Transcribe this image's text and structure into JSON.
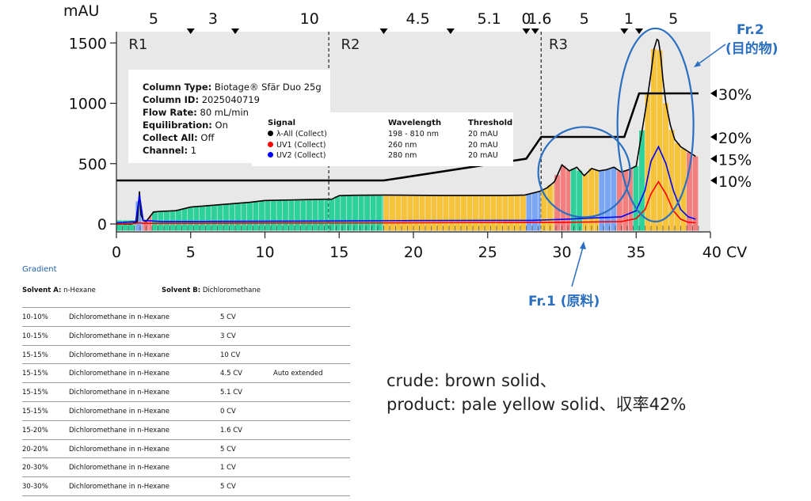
{
  "chart_data": {
    "type": "area",
    "ylabel": "mAU",
    "xlabel": "CV",
    "x_ticks": [
      0,
      5,
      10,
      15,
      20,
      25,
      30,
      35,
      40
    ],
    "y_ticks": [
      0,
      500,
      1000,
      1500
    ],
    "x_unit_label": "40 CV",
    "xlim": [
      0,
      40
    ],
    "ylim": [
      -70,
      1590
    ],
    "grid": false,
    "segment_labels": [
      {
        "label": "5",
        "x": 2.5
      },
      {
        "label": "3",
        "x": 6.5
      },
      {
        "label": "10",
        "x": 13
      },
      {
        "label": "4.5",
        "x": 20.3
      },
      {
        "label": "5.1",
        "x": 25.1
      },
      {
        "label": "0",
        "x": 27.6
      },
      {
        "label": "1.6",
        "x": 28.5
      },
      {
        "label": "5",
        "x": 31.5
      },
      {
        "label": "1",
        "x": 34.5
      },
      {
        "label": "5",
        "x": 37.5
      }
    ],
    "segment_markers": [
      5,
      8,
      18,
      22.5,
      27.6,
      28.2,
      34.2,
      35.2
    ],
    "regions": [
      {
        "label": "R1",
        "x": 0.5
      },
      {
        "label": "R2",
        "x": 14.8
      },
      {
        "label": "R3",
        "x": 28.8
      }
    ],
    "region_boundaries": [
      14.3,
      28.6
    ],
    "series": [
      {
        "name": "λ-All (Collect)",
        "color": "#000000",
        "x": [
          0,
          0.3,
          1,
          1.4,
          1.55,
          1.65,
          1.8,
          2,
          2.5,
          3,
          4,
          5,
          7,
          9,
          10,
          12,
          14,
          14.5,
          15,
          16,
          18,
          20,
          22,
          24,
          26,
          27,
          27.5,
          28,
          28.5,
          29,
          29.5,
          30,
          30.5,
          31,
          31.5,
          32,
          32.5,
          33,
          33.5,
          34,
          34.5,
          35,
          35.3,
          35.7,
          36,
          36.2,
          36.4,
          36.5,
          36.65,
          36.8,
          37,
          37.3,
          37.6,
          38,
          38.5,
          39
        ],
        "values": [
          0,
          0,
          0,
          20,
          270,
          80,
          30,
          20,
          100,
          105,
          110,
          140,
          160,
          180,
          195,
          200,
          205,
          205,
          235,
          238,
          240,
          238,
          237,
          237,
          237,
          238,
          240,
          255,
          270,
          300,
          350,
          490,
          440,
          470,
          400,
          460,
          440,
          450,
          470,
          430,
          450,
          480,
          700,
          1000,
          1250,
          1450,
          1530,
          1520,
          1400,
          1200,
          1000,
          820,
          700,
          640,
          600,
          560
        ]
      },
      {
        "name": "UV1 (Collect)",
        "color": "#ff0000",
        "x": [
          0,
          1.3,
          1.55,
          1.8,
          3,
          10,
          20,
          30,
          34,
          35,
          35.6,
          36,
          36.5,
          37,
          37.5,
          38,
          38.5,
          39
        ],
        "values": [
          0,
          5,
          10,
          5,
          5,
          8,
          10,
          14,
          20,
          45,
          120,
          250,
          350,
          250,
          110,
          40,
          15,
          10
        ]
      },
      {
        "name": "UV2 (Collect)",
        "color": "#0000ff",
        "x": [
          0,
          1.3,
          1.55,
          1.8,
          3,
          10,
          20,
          28,
          30,
          34,
          35,
          35.6,
          36,
          36.5,
          37,
          37.5,
          38,
          38.5,
          39
        ],
        "values": [
          10,
          20,
          240,
          30,
          20,
          22,
          28,
          30,
          38,
          60,
          110,
          280,
          520,
          640,
          500,
          280,
          120,
          60,
          40
        ]
      }
    ],
    "gradient_percent": {
      "x": [
        0,
        18,
        27.6,
        28.6,
        34.2,
        35.2,
        39.2
      ],
      "percent": [
        10,
        10,
        15,
        20,
        20,
        30,
        30
      ],
      "labels": [
        "30%",
        "20%",
        "15%",
        "10%"
      ]
    },
    "fractions": {
      "colors": [
        "#2fd19a",
        "#f6c33a",
        "#f47f7f",
        "#7aa6f3"
      ],
      "bands": [
        {
          "from": 0,
          "to": 1.3,
          "color": "#2fd19a"
        },
        {
          "from": 1.3,
          "to": 1.8,
          "color": "#7aa6f3"
        },
        {
          "from": 1.8,
          "to": 2.4,
          "color": "#f47f7f"
        },
        {
          "from": 2.4,
          "to": 14.3,
          "color": "#2fd19a"
        },
        {
          "from": 14.3,
          "to": 18,
          "color": "#2fd19a"
        },
        {
          "from": 18,
          "to": 27.6,
          "color": "#f6c33a"
        },
        {
          "from": 27.6,
          "to": 28.6,
          "color": "#7aa6f3"
        },
        {
          "from": 28.6,
          "to": 29.5,
          "color": "#f6c33a"
        },
        {
          "from": 29.5,
          "to": 30.6,
          "color": "#f47f7f"
        },
        {
          "from": 30.6,
          "to": 31.4,
          "color": "#2fd19a"
        },
        {
          "from": 31.4,
          "to": 32.5,
          "color": "#f6c33a"
        },
        {
          "from": 32.5,
          "to": 33.7,
          "color": "#7aa6f3"
        },
        {
          "from": 33.7,
          "to": 34.8,
          "color": "#f47f7f"
        },
        {
          "from": 34.8,
          "to": 35.6,
          "color": "#2fd19a"
        },
        {
          "from": 35.6,
          "to": 38.4,
          "color": "#f6c33a"
        },
        {
          "from": 38.4,
          "to": 39.2,
          "color": "#f47f7f"
        }
      ]
    }
  },
  "info_box": [
    {
      "key": "Column Type:",
      "value": "Biotage® Sfär Duo 25g"
    },
    {
      "key": "Column ID:",
      "value": "2025040719"
    },
    {
      "key": "Flow Rate:",
      "value": "80 mL/min"
    },
    {
      "key": "Equilibration:",
      "value": "On"
    },
    {
      "key": "Collect All:",
      "value": "Off"
    },
    {
      "key": "Channel:",
      "value": "1"
    }
  ],
  "signal_table": {
    "headers": {
      "signal": "Signal",
      "wavelength": "Wavelength",
      "threshold": "Threshold"
    },
    "rows": [
      {
        "name": "λ-All (Collect)",
        "color": "#000000",
        "wavelength": "198 - 810 nm",
        "threshold": "20 mAU"
      },
      {
        "name": "UV1 (Collect)",
        "color": "#ff0000",
        "wavelength": "260 nm",
        "threshold": "20 mAU"
      },
      {
        "name": "UV2 (Collect)",
        "color": "#0000ff",
        "wavelength": "280 nm",
        "threshold": "20 mAU"
      }
    ]
  },
  "gradient": {
    "title": "Gradient",
    "solvent_a_label": "Solvent A:",
    "solvent_a": "n-Hexane",
    "solvent_b_label": "Solvent B:",
    "solvent_b": "Dichloromethane",
    "rows": [
      {
        "range": "10-10%",
        "desc": "Dichloromethane in n-Hexane",
        "length": "5 CV",
        "note": ""
      },
      {
        "range": "10-15%",
        "desc": "Dichloromethane in n-Hexane",
        "length": "3 CV",
        "note": ""
      },
      {
        "range": "15-15%",
        "desc": "Dichloromethane in n-Hexane",
        "length": "10 CV",
        "note": ""
      },
      {
        "range": "15-15%",
        "desc": "Dichloromethane in n-Hexane",
        "length": "4.5 CV",
        "note": "Auto extended"
      },
      {
        "range": "15-15%",
        "desc": "Dichloromethane in n-Hexane",
        "length": "5.1 CV",
        "note": ""
      },
      {
        "range": "15-15%",
        "desc": "Dichloromethane in n-Hexane",
        "length": "0 CV",
        "note": ""
      },
      {
        "range": "15-20%",
        "desc": "Dichloromethane in n-Hexane",
        "length": "1.6 CV",
        "note": ""
      },
      {
        "range": "20-20%",
        "desc": "Dichloromethane in n-Hexane",
        "length": "5 CV",
        "note": ""
      },
      {
        "range": "20-30%",
        "desc": "Dichloromethane in n-Hexane",
        "length": "1 CV",
        "note": ""
      },
      {
        "range": "30-30%",
        "desc": "Dichloromethane in n-Hexane",
        "length": "5 CV",
        "note": ""
      }
    ]
  },
  "notes": {
    "line1": "crude: brown solid、",
    "line2": "product: pale yellow solid、収率42%"
  },
  "annotations": {
    "fr1": "Fr.1 (原料)",
    "fr2_line1": "Fr.2",
    "fr2_line2": "(目的物)",
    "color": "#2b6fc0"
  }
}
